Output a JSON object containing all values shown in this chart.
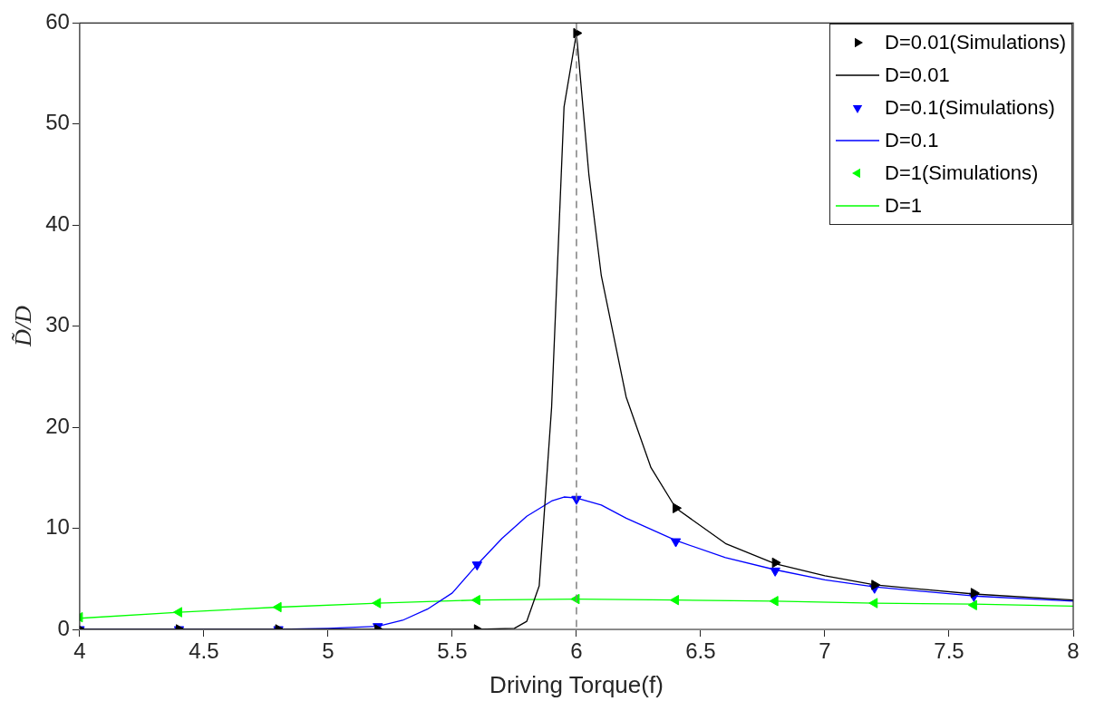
{
  "chart_data": {
    "type": "line",
    "xlabel": "Driving Torque(f)",
    "ylabel": "D̃/D",
    "xlim": [
      4,
      8
    ],
    "ylim": [
      0,
      60
    ],
    "xticks": [
      4,
      4.5,
      5,
      5.5,
      6,
      6.5,
      7,
      7.5,
      8
    ],
    "yticks": [
      0,
      10,
      20,
      30,
      40,
      50,
      60
    ],
    "grid": false,
    "legend": "top right",
    "ref_lines": [
      {
        "axis": "x",
        "value": 6,
        "color": "#808080",
        "line_style": "dashed"
      }
    ],
    "series": [
      {
        "name": "D=0.01(Simulations)",
        "type": "scatter",
        "marker": "triangle",
        "color": "#000000",
        "x": [
          4,
          4.4,
          4.8,
          5.2,
          5.6,
          6,
          6.4,
          6.8,
          7.2,
          7.6
        ],
        "values": [
          0,
          0,
          0,
          0,
          0,
          59,
          12,
          6.6,
          4.4,
          3.6
        ]
      },
      {
        "name": "D=0.01",
        "marker": "none",
        "color": "#000000",
        "x": [
          4,
          5,
          5.6,
          5.75,
          5.8,
          5.85,
          5.9,
          5.95,
          6,
          6.05,
          6.1,
          6.2,
          6.3,
          6.4,
          6.6,
          6.8,
          7,
          7.2,
          7.6,
          8
        ],
        "values": [
          0,
          0,
          0,
          0.1,
          0.8,
          4.3,
          22,
          51.7,
          59,
          45,
          35,
          23,
          16,
          12,
          8.5,
          6.5,
          5.3,
          4.4,
          3.5,
          2.9
        ]
      },
      {
        "name": "D=0.1(Simulations)",
        "type": "scatter",
        "marker": "triangle",
        "color": "#0000ff",
        "x": [
          4,
          4.4,
          4.8,
          5.2,
          5.6,
          6,
          6.4,
          6.8,
          7.2,
          7.6
        ],
        "values": [
          0,
          0,
          0,
          0.3,
          6.4,
          12.9,
          8.7,
          5.8,
          4.1,
          3.3
        ]
      },
      {
        "name": "D=0.1",
        "marker": "none",
        "color": "#0000ff",
        "x": [
          4,
          4.8,
          5,
          5.2,
          5.3,
          5.4,
          5.5,
          5.6,
          5.7,
          5.8,
          5.9,
          5.95,
          6,
          6.1,
          6.2,
          6.4,
          6.6,
          6.8,
          7,
          7.2,
          7.6,
          8
        ],
        "values": [
          0,
          0,
          0.1,
          0.3,
          0.9,
          2,
          3.6,
          6.4,
          9,
          11.2,
          12.7,
          13.1,
          13,
          12.3,
          11,
          8.8,
          7.1,
          5.9,
          4.9,
          4.2,
          3.3,
          2.8
        ]
      },
      {
        "name": "D=1(Simulations)",
        "type": "scatter",
        "marker": "triangle",
        "color": "#00ff00",
        "x": [
          4,
          4.4,
          4.8,
          5.2,
          5.6,
          6,
          6.4,
          6.8,
          7.2,
          7.6
        ],
        "values": [
          1.2,
          1.7,
          2.2,
          2.6,
          2.9,
          3,
          2.9,
          2.8,
          2.6,
          2.4
        ]
      },
      {
        "name": "D=1",
        "marker": "none",
        "color": "#00ff00",
        "x": [
          4,
          4.4,
          4.8,
          5.2,
          5.6,
          6,
          6.4,
          6.8,
          7.2,
          7.6,
          8
        ],
        "values": [
          1.1,
          1.7,
          2.2,
          2.6,
          2.9,
          3,
          2.9,
          2.8,
          2.6,
          2.5,
          2.3
        ]
      }
    ]
  }
}
